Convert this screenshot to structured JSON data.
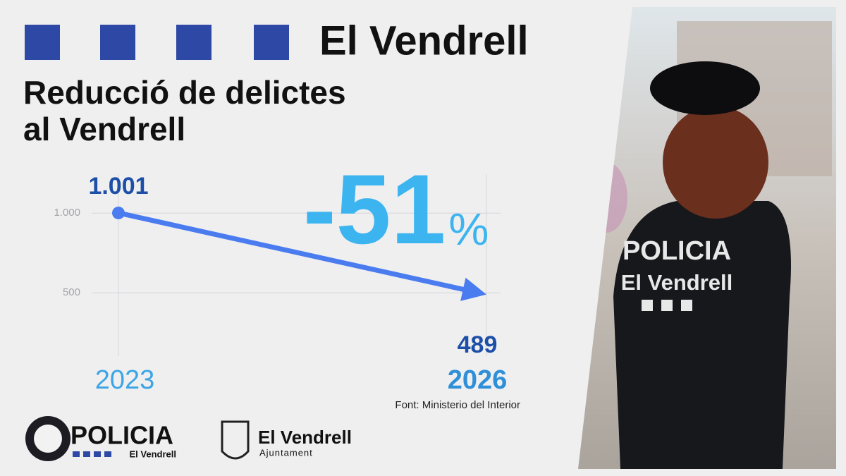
{
  "header": {
    "brand": "El Vendrell"
  },
  "chart_data": {
    "type": "line",
    "title": [
      "Reducció de delictes",
      "al Vendrell"
    ],
    "categories": [
      "2023",
      "2026"
    ],
    "values": [
      1001,
      489
    ],
    "value_labels": [
      "1.001",
      "489"
    ],
    "color": "#4a7cf0",
    "ylim": [
      200,
      1200
    ],
    "yticks": [
      {
        "value": 1000,
        "label": "1.000"
      },
      {
        "value": 500,
        "label": "500"
      }
    ],
    "grid": true,
    "change": "-51",
    "change_unit": "%",
    "source": "Font: Ministerio del Interior"
  },
  "photo": {
    "vest_line1": "POLICIA",
    "vest_line2": "El Vendrell"
  },
  "logos": {
    "police": "POLICIA",
    "police_sub": "El Vendrell",
    "council": "El Vendrell",
    "council_sub": "Ajuntament"
  }
}
